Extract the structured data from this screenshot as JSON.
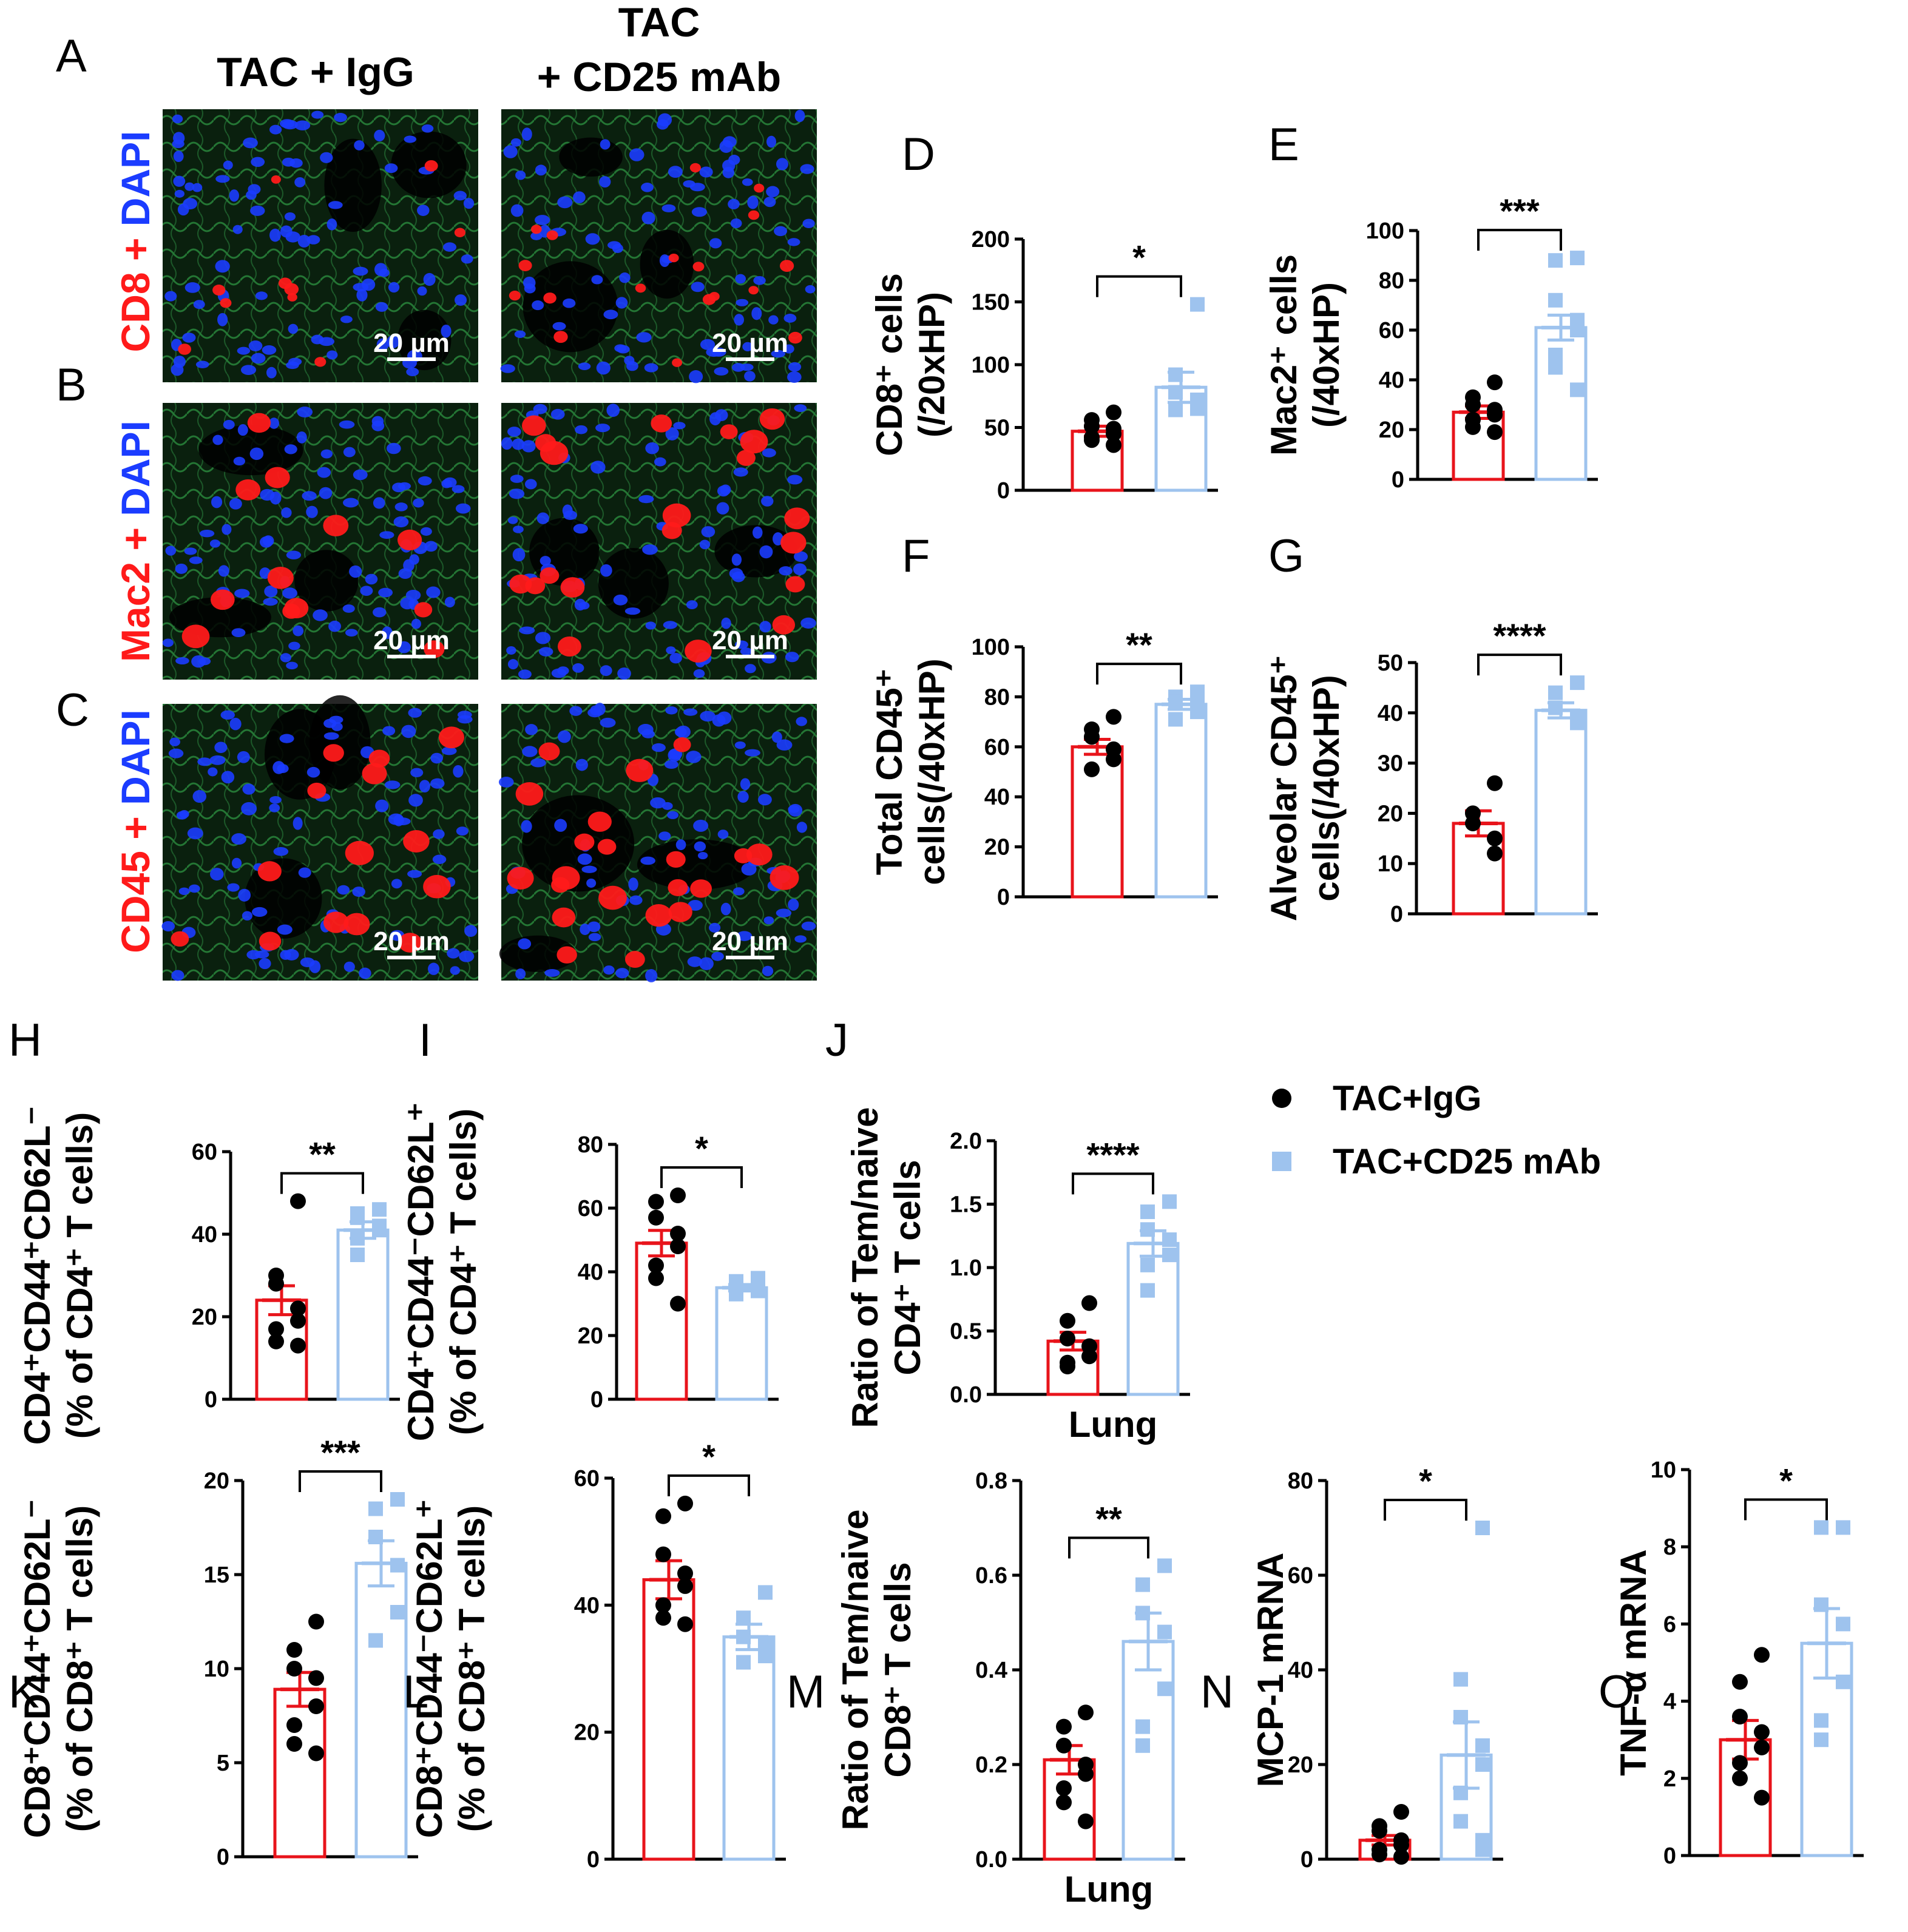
{
  "colors": {
    "igg": "#000000",
    "cd25": "#9ec3ee",
    "bar_igg": "#e8141b",
    "bar_cd25": "#9ec3ee",
    "cell_red": "#ff1a1a",
    "cell_blue": "#1b3cff",
    "cell_green": "#2fae4a"
  },
  "column_headers": {
    "igg": "TAC + IgG",
    "cd25_line1": "TAC",
    "cd25_line2": "+ CD25 mAb"
  },
  "image_rows": [
    {
      "letter": "A",
      "stain_label": "CD8",
      "stain_counter": "DAPI",
      "scale_igg": "20 µm",
      "scale_cd25": "20 µm"
    },
    {
      "letter": "B",
      "stain_label": "Mac2",
      "stain_counter": "DAPI",
      "scale_igg": "20 µm",
      "scale_cd25": "20 µm"
    },
    {
      "letter": "C",
      "stain_label": "CD45",
      "stain_counter": "DAPI",
      "scale_igg": "20 µm",
      "scale_cd25": "20 µm"
    }
  ],
  "legend": {
    "igg": "TAC+IgG",
    "cd25": "TAC+CD25 mAb"
  },
  "chart_data": [
    {
      "panel": "D",
      "type": "bar",
      "ylabel_lines": [
        "CD8⁺ cells",
        "(/20xHP)"
      ],
      "ylim": [
        0,
        200
      ],
      "yticks": [
        0,
        50,
        100,
        150,
        200
      ],
      "xlabel": "",
      "significance": "*",
      "series": [
        {
          "name": "TAC+IgG",
          "mean": 47,
          "sem": 4,
          "points": [
            62,
            56,
            51,
            49,
            45,
            42,
            40,
            36
          ]
        },
        {
          "name": "TAC+CD25 mAb",
          "mean": 82,
          "sem": 12,
          "points": [
            148,
            92,
            78,
            72,
            65,
            64
          ]
        }
      ]
    },
    {
      "panel": "E",
      "type": "bar",
      "ylabel_lines": [
        "Mac2⁺ cells",
        "(/40xHP)"
      ],
      "ylim": [
        0,
        100
      ],
      "yticks": [
        0,
        20,
        40,
        60,
        80,
        100
      ],
      "xlabel": "",
      "significance": "***",
      "series": [
        {
          "name": "TAC+IgG",
          "mean": 27,
          "sem": 2.5,
          "points": [
            39,
            33,
            30,
            28,
            26,
            24,
            21,
            19
          ]
        },
        {
          "name": "TAC+CD25 mAb",
          "mean": 61,
          "sem": 5,
          "points": [
            89,
            88,
            72,
            64,
            60,
            50,
            45,
            36
          ]
        }
      ]
    },
    {
      "panel": "F",
      "type": "bar",
      "ylabel_lines": [
        "Total CD45⁺",
        "cells(/40xHP)"
      ],
      "ylim": [
        0,
        100
      ],
      "yticks": [
        0,
        20,
        40,
        60,
        80,
        100
      ],
      "xlabel": "",
      "significance": "**",
      "series": [
        {
          "name": "TAC+IgG",
          "mean": 60,
          "sem": 3,
          "points": [
            72,
            67,
            64,
            59,
            55,
            51
          ]
        },
        {
          "name": "TAC+CD25 mAb",
          "mean": 77,
          "sem": 2,
          "points": [
            82,
            80,
            78,
            77,
            74,
            71
          ]
        }
      ]
    },
    {
      "panel": "G",
      "type": "bar",
      "ylabel_lines": [
        "Alveolar CD45⁺",
        "cells(/40xHP)"
      ],
      "ylim": [
        0,
        50
      ],
      "yticks": [
        0,
        10,
        20,
        30,
        40,
        50
      ],
      "xlabel": "",
      "significance": "****",
      "series": [
        {
          "name": "TAC+IgG",
          "mean": 18,
          "sem": 2.5,
          "points": [
            26,
            20,
            18,
            15,
            12
          ]
        },
        {
          "name": "TAC+CD25 mAb",
          "mean": 40.5,
          "sem": 1.5,
          "points": [
            46,
            44,
            41,
            39,
            38
          ]
        }
      ]
    },
    {
      "panel": "H",
      "type": "bar",
      "ylabel_lines": [
        "CD4⁺CD44⁺CD62L⁻",
        "(% of CD4⁺ T cells)"
      ],
      "ylim": [
        0,
        60
      ],
      "yticks": [
        0,
        20,
        40,
        60
      ],
      "xlabel": "",
      "significance": "**",
      "series": [
        {
          "name": "TAC+IgG",
          "mean": 24,
          "sem": 3.5,
          "points": [
            48,
            30,
            28,
            22,
            19,
            17,
            14,
            13
          ]
        },
        {
          "name": "TAC+CD25 mAb",
          "mean": 41,
          "sem": 2,
          "points": [
            46,
            45,
            44,
            42,
            41,
            39,
            35
          ]
        }
      ]
    },
    {
      "panel": "I",
      "type": "bar",
      "ylabel_lines": [
        "CD4⁺CD44⁻CD62L⁺",
        "(% of CD4⁺ T cells)"
      ],
      "ylim": [
        0,
        80
      ],
      "yticks": [
        0,
        20,
        40,
        60,
        80
      ],
      "xlabel": "",
      "significance": "*",
      "series": [
        {
          "name": "TAC+IgG",
          "mean": 49,
          "sem": 4,
          "points": [
            64,
            62,
            57,
            52,
            48,
            42,
            38,
            30
          ]
        },
        {
          "name": "TAC+CD25 mAb",
          "mean": 35,
          "sem": 1,
          "points": [
            38,
            37,
            36,
            35,
            34,
            33
          ]
        }
      ]
    },
    {
      "panel": "J",
      "type": "bar",
      "ylabel_lines": [
        "Ratio of Tem/naive",
        "CD4⁺ T cells"
      ],
      "ylim": [
        0,
        2
      ],
      "yticks": [
        "0.0",
        "0.5",
        "1.0",
        "1.5",
        "2.0"
      ],
      "xlabel": "Lung",
      "significance": "****",
      "series": [
        {
          "name": "TAC+IgG",
          "mean": 0.42,
          "sem": 0.07,
          "points": [
            0.72,
            0.58,
            0.44,
            0.38,
            0.3,
            0.25,
            0.22
          ]
        },
        {
          "name": "TAC+CD25 mAb",
          "mean": 1.19,
          "sem": 0.1,
          "points": [
            1.52,
            1.44,
            1.3,
            1.22,
            1.1,
            1.02,
            0.82
          ]
        }
      ]
    },
    {
      "panel": "K",
      "type": "bar",
      "ylabel_lines": [
        "CD8⁺CD44⁺CD62L⁻",
        "(% of CD8⁺ T cells)"
      ],
      "ylim": [
        0,
        20
      ],
      "yticks": [
        0,
        5,
        10,
        15,
        20
      ],
      "xlabel": "",
      "significance": "***",
      "series": [
        {
          "name": "TAC+IgG",
          "mean": 8.9,
          "sem": 0.9,
          "points": [
            12.5,
            11,
            10,
            9.5,
            8,
            7,
            6,
            5.5
          ]
        },
        {
          "name": "TAC+CD25 mAb",
          "mean": 15.6,
          "sem": 1.2,
          "points": [
            19,
            18.5,
            17,
            15.5,
            13,
            11.5
          ]
        }
      ]
    },
    {
      "panel": "L",
      "type": "bar",
      "ylabel_lines": [
        "CD8⁺CD44⁻CD62L⁺",
        "(% of CD8⁺ T cells)"
      ],
      "ylim": [
        0,
        60
      ],
      "yticks": [
        0,
        20,
        40,
        60
      ],
      "xlabel": "",
      "significance": "*",
      "series": [
        {
          "name": "TAC+IgG",
          "mean": 44,
          "sem": 3,
          "points": [
            56,
            54,
            48,
            45,
            43,
            40,
            38,
            37
          ]
        },
        {
          "name": "TAC+CD25 mAb",
          "mean": 35,
          "sem": 2,
          "points": [
            42,
            38,
            35,
            34,
            32,
            31
          ]
        }
      ]
    },
    {
      "panel": "M",
      "type": "bar",
      "ylabel_lines": [
        "Ratio of Tem/naive",
        "CD8⁺ T cells"
      ],
      "ylim": [
        0,
        0.8
      ],
      "yticks": [
        "0.0",
        "0.2",
        "0.4",
        "0.6",
        "0.8"
      ],
      "xlabel": "Lung",
      "significance": "**",
      "series": [
        {
          "name": "TAC+IgG",
          "mean": 0.21,
          "sem": 0.03,
          "points": [
            0.31,
            0.28,
            0.24,
            0.2,
            0.18,
            0.15,
            0.12,
            0.08
          ]
        },
        {
          "name": "TAC+CD25 mAb",
          "mean": 0.46,
          "sem": 0.06,
          "points": [
            0.62,
            0.58,
            0.52,
            0.48,
            0.36,
            0.28,
            0.24
          ]
        }
      ]
    },
    {
      "panel": "N",
      "type": "bar",
      "ylabel_lines": [
        "MCP-1 mRNA"
      ],
      "ylim": [
        0,
        80
      ],
      "yticks": [
        0,
        20,
        40,
        60,
        80
      ],
      "xlabel": "",
      "significance": "*",
      "series": [
        {
          "name": "TAC+IgG",
          "mean": 4,
          "sem": 1,
          "points": [
            10,
            7,
            6,
            4,
            3,
            2,
            1,
            0.5
          ]
        },
        {
          "name": "TAC+CD25 mAb",
          "mean": 22,
          "sem": 7,
          "points": [
            70,
            38,
            30,
            24,
            20,
            14,
            8,
            4,
            2
          ]
        }
      ]
    },
    {
      "panel": "O",
      "type": "bar",
      "ylabel_lines": [
        "TNF-α mRNA"
      ],
      "ylim": [
        0,
        10
      ],
      "yticks": [
        0,
        2,
        4,
        6,
        8,
        10
      ],
      "xlabel": "",
      "significance": "*",
      "series": [
        {
          "name": "TAC+IgG",
          "mean": 3,
          "sem": 0.5,
          "points": [
            5.2,
            4.5,
            3.6,
            3.2,
            2.8,
            2.4,
            2,
            1.5
          ]
        },
        {
          "name": "TAC+CD25 mAb",
          "mean": 5.5,
          "sem": 0.9,
          "points": [
            8.5,
            8.5,
            6.5,
            6,
            4.5,
            3.5,
            3
          ]
        }
      ]
    }
  ]
}
